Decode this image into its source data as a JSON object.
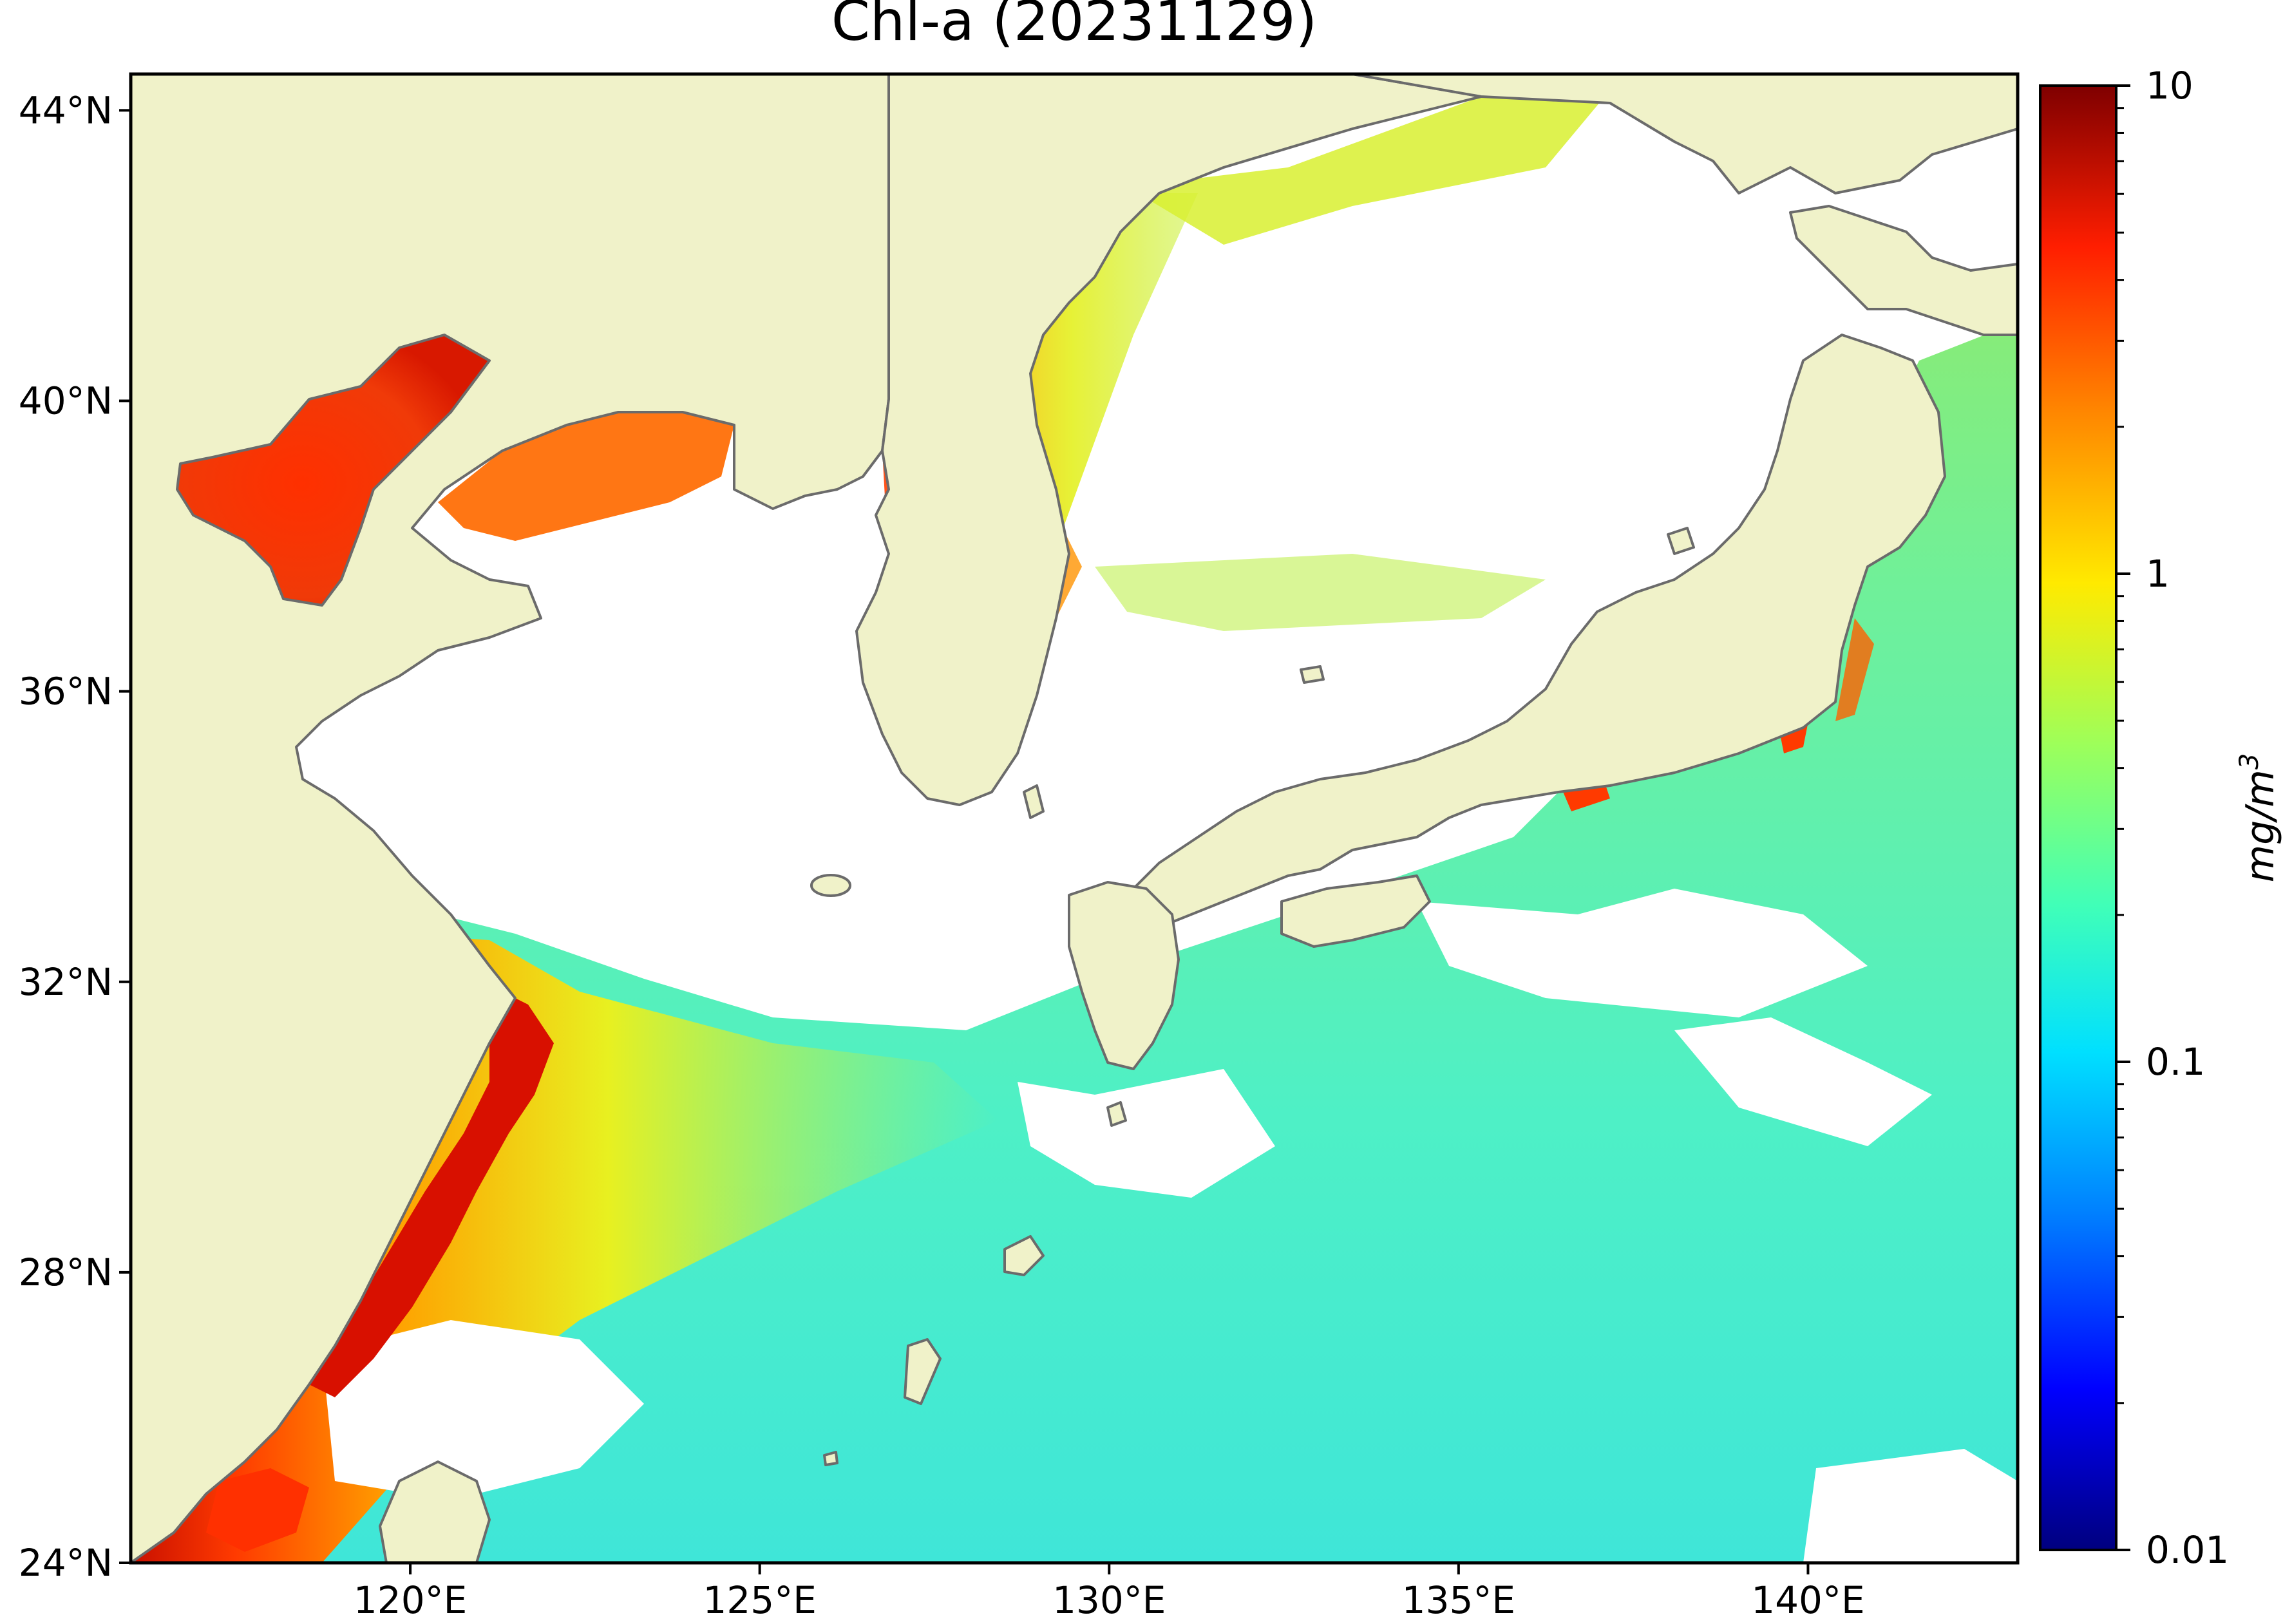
{
  "figure": {
    "title": "Chl-a (20231129)"
  },
  "map": {
    "projection": "lat-lon",
    "extent": {
      "lon": [
        116.0,
        143.0
      ],
      "lat": [
        24.0,
        44.5
      ]
    },
    "lon_ticks": [
      {
        "value": 120,
        "label": "120°E"
      },
      {
        "value": 125,
        "label": "125°E"
      },
      {
        "value": 130,
        "label": "130°E"
      },
      {
        "value": 135,
        "label": "135°E"
      },
      {
        "value": 140,
        "label": "140°E"
      }
    ],
    "lat_ticks": [
      {
        "value": 24,
        "label": "24°N"
      },
      {
        "value": 28,
        "label": "28°N"
      },
      {
        "value": 32,
        "label": "32°N"
      },
      {
        "value": 36,
        "label": "36°N"
      },
      {
        "value": 40,
        "label": "40°N"
      },
      {
        "value": 44,
        "label": "44°N"
      }
    ],
    "colors": {
      "land": "#f0f2c9",
      "coastline": "#6b6b6b",
      "no_data": "#ffffff",
      "frame": "#000000"
    },
    "features": {
      "land": [
        "China mainland",
        "Korean Peninsula",
        "Japan",
        "Taiwan",
        "Shandong Peninsula",
        "Liaodong Peninsula",
        "Ryukyu Islands"
      ],
      "seas": [
        "Bohai Sea",
        "Yellow Sea",
        "East China Sea",
        "Sea of Japan",
        "Pacific Ocean"
      ]
    }
  },
  "colorbar": {
    "label": "mg/m",
    "label_superscript": "3",
    "scale": "log",
    "range": [
      0.01,
      10
    ],
    "colormap": "jet",
    "ticks": [
      {
        "value": 10,
        "label": "10"
      },
      {
        "value": 1,
        "label": "1"
      },
      {
        "value": 0.1,
        "label": "0.1"
      },
      {
        "value": 0.01,
        "label": "0.01"
      }
    ],
    "minor_ticks": [
      2,
      3,
      4,
      5,
      6,
      7,
      8,
      9,
      0.2,
      0.3,
      0.4,
      0.5,
      0.6,
      0.7,
      0.8,
      0.9,
      0.02,
      0.03,
      0.04,
      0.05,
      0.06,
      0.07,
      0.08,
      0.09
    ]
  }
}
